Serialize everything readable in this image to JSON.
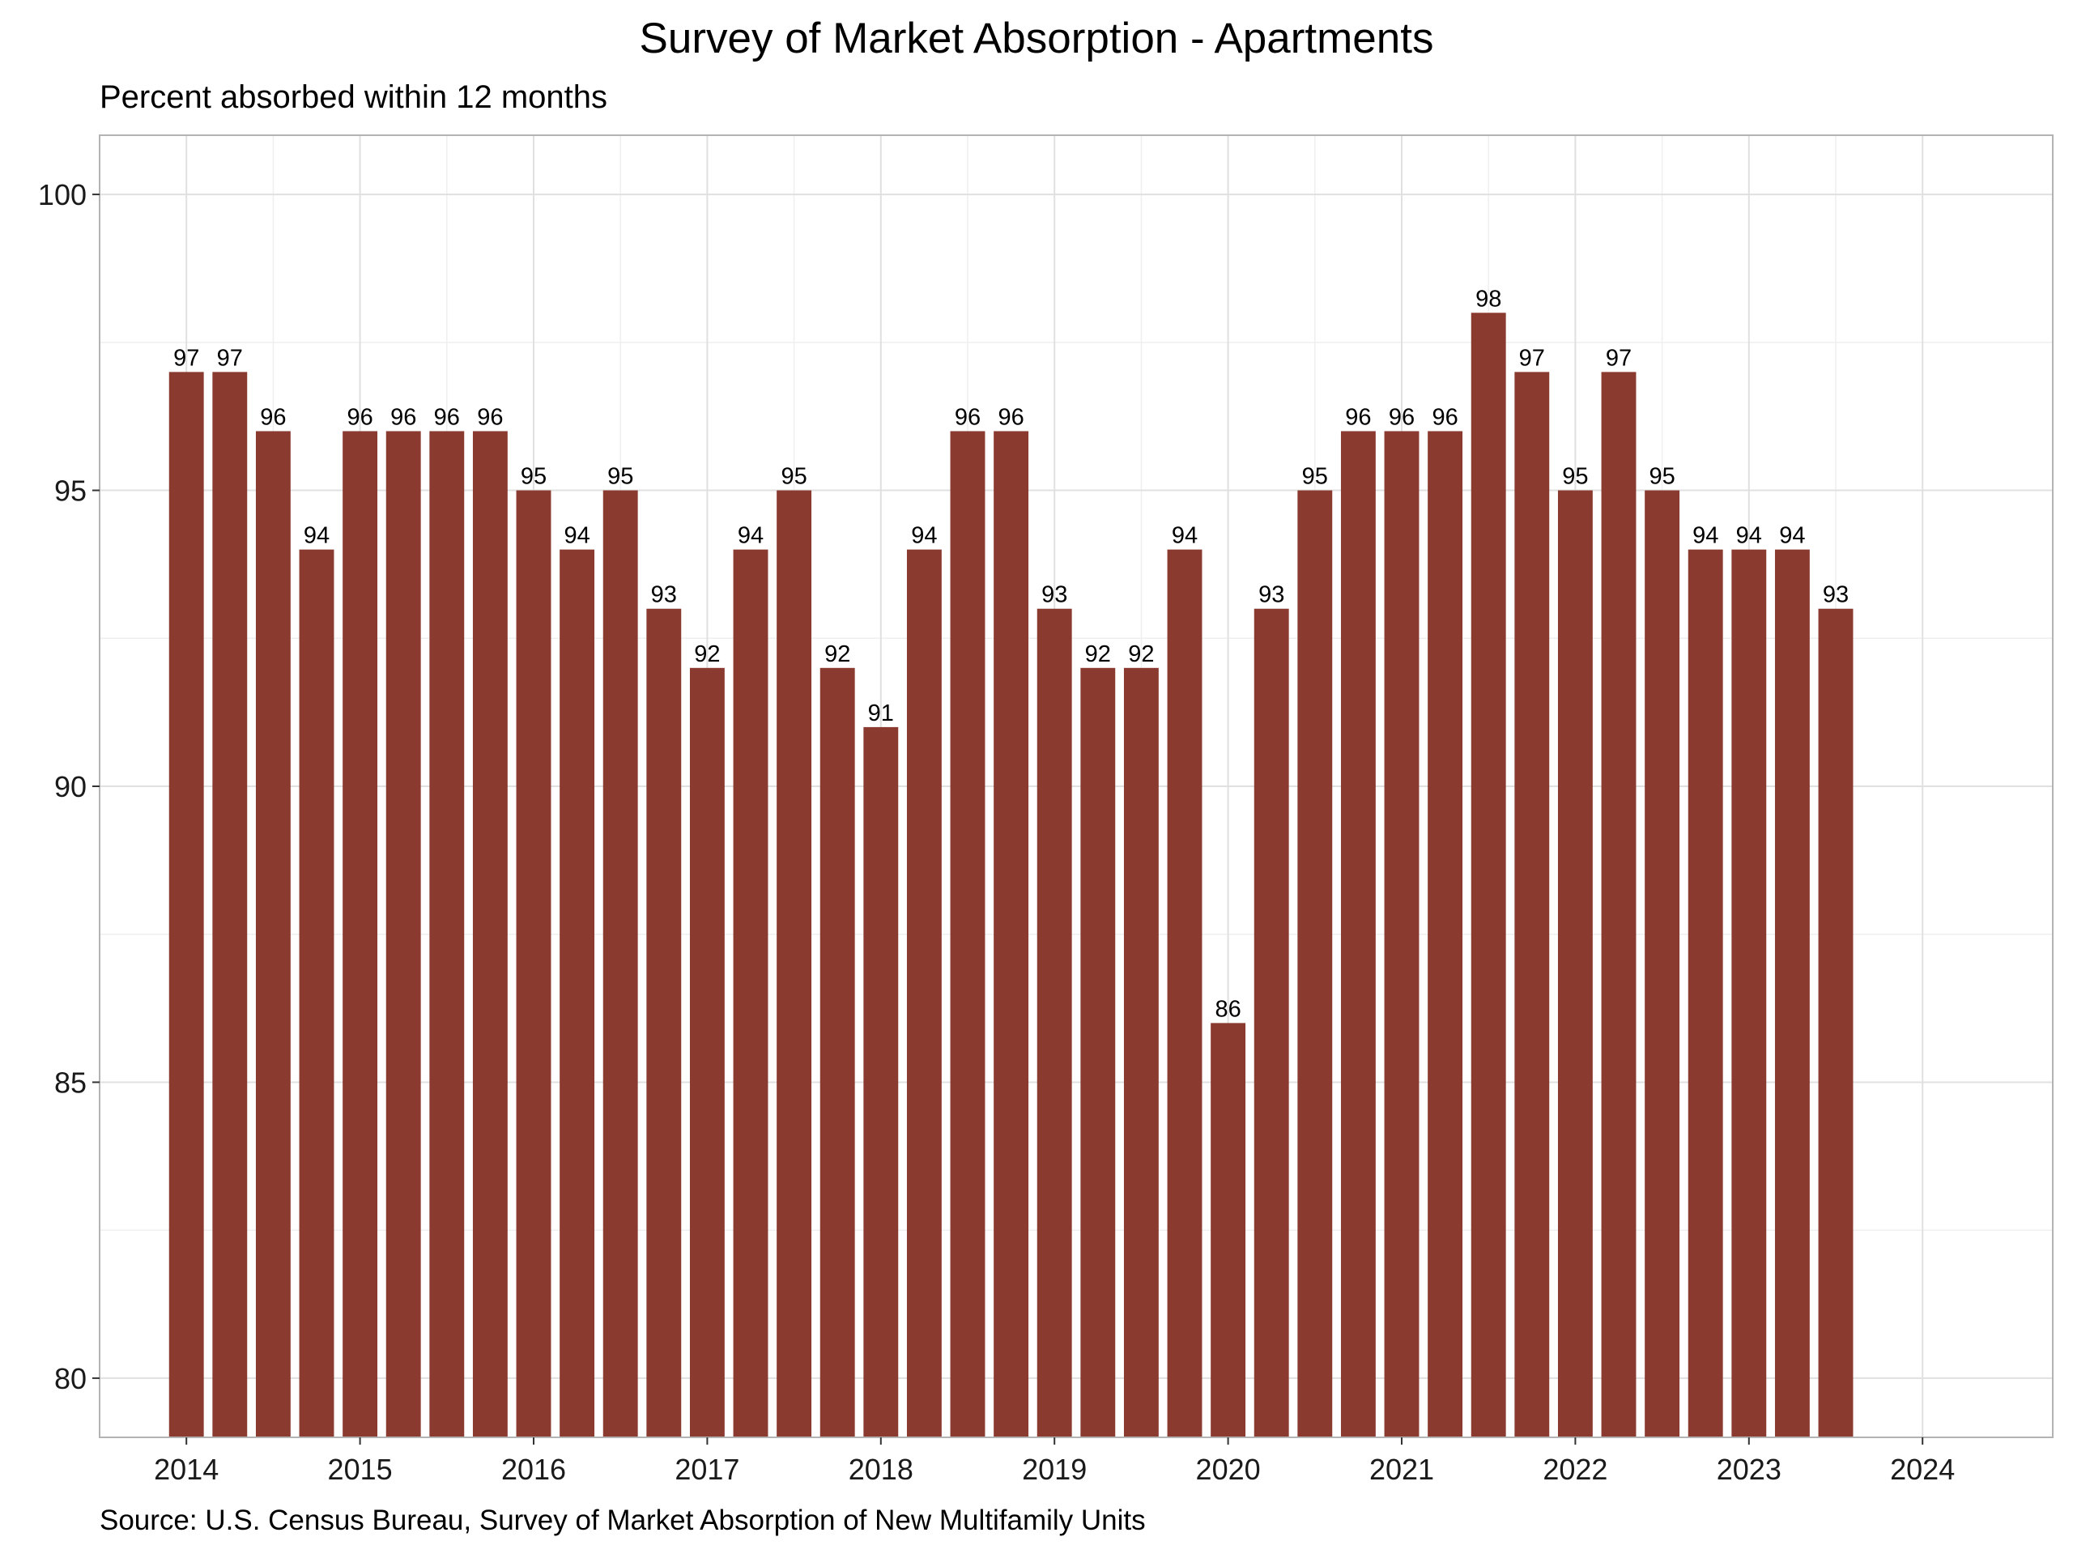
{
  "chart_data": {
    "type": "bar",
    "title": "Survey of Market Absorption - Apartments",
    "subtitle": "Percent absorbed within 12 months",
    "caption": "Source: U.S. Census Bureau, Survey of Market Absorption of New Multifamily Units",
    "xlabel": "",
    "ylabel": "",
    "categories": [
      "2014 Q1",
      "2014 Q2",
      "2014 Q3",
      "2014 Q4",
      "2015 Q1",
      "2015 Q2",
      "2015 Q3",
      "2015 Q4",
      "2016 Q1",
      "2016 Q2",
      "2016 Q3",
      "2016 Q4",
      "2017 Q1",
      "2017 Q2",
      "2017 Q3",
      "2017 Q4",
      "2018 Q1",
      "2018 Q2",
      "2018 Q3",
      "2018 Q4",
      "2019 Q1",
      "2019 Q2",
      "2019 Q3",
      "2019 Q4",
      "2020 Q1",
      "2020 Q2",
      "2020 Q3",
      "2020 Q4",
      "2021 Q1",
      "2021 Q2",
      "2021 Q3",
      "2021 Q4",
      "2022 Q1",
      "2022 Q2",
      "2022 Q3",
      "2022 Q4",
      "2023 Q1",
      "2023 Q2",
      "2023 Q3"
    ],
    "x": [
      2014.0,
      2014.25,
      2014.5,
      2014.75,
      2015.0,
      2015.25,
      2015.5,
      2015.75,
      2016.0,
      2016.25,
      2016.5,
      2016.75,
      2017.0,
      2017.25,
      2017.5,
      2017.75,
      2018.0,
      2018.25,
      2018.5,
      2018.75,
      2019.0,
      2019.25,
      2019.5,
      2019.75,
      2020.0,
      2020.25,
      2020.5,
      2020.75,
      2021.0,
      2021.25,
      2021.5,
      2021.75,
      2022.0,
      2022.25,
      2022.5,
      2022.75,
      2023.0,
      2023.25,
      2023.5
    ],
    "values": [
      97,
      97,
      96,
      94,
      96,
      96,
      96,
      96,
      95,
      94,
      95,
      93,
      92,
      94,
      95,
      92,
      91,
      94,
      96,
      96,
      93,
      92,
      92,
      94,
      86,
      93,
      95,
      96,
      96,
      96,
      98,
      97,
      95,
      97,
      95,
      94,
      94,
      94,
      93
    ],
    "xlim": [
      2013.5,
      2024.75
    ],
    "ylim": [
      79,
      101
    ],
    "yticks": [
      80,
      85,
      90,
      95,
      100
    ],
    "xticks": [
      2014,
      2015,
      2016,
      2017,
      2018,
      2019,
      2020,
      2021,
      2022,
      2023,
      2024
    ],
    "xtick_labels": [
      "2014",
      "2015",
      "2016",
      "2017",
      "2018",
      "2019",
      "2020",
      "2021",
      "2022",
      "2023",
      "2024"
    ],
    "bar_color": "#8B3A2F",
    "grid": true,
    "legend": "none"
  }
}
